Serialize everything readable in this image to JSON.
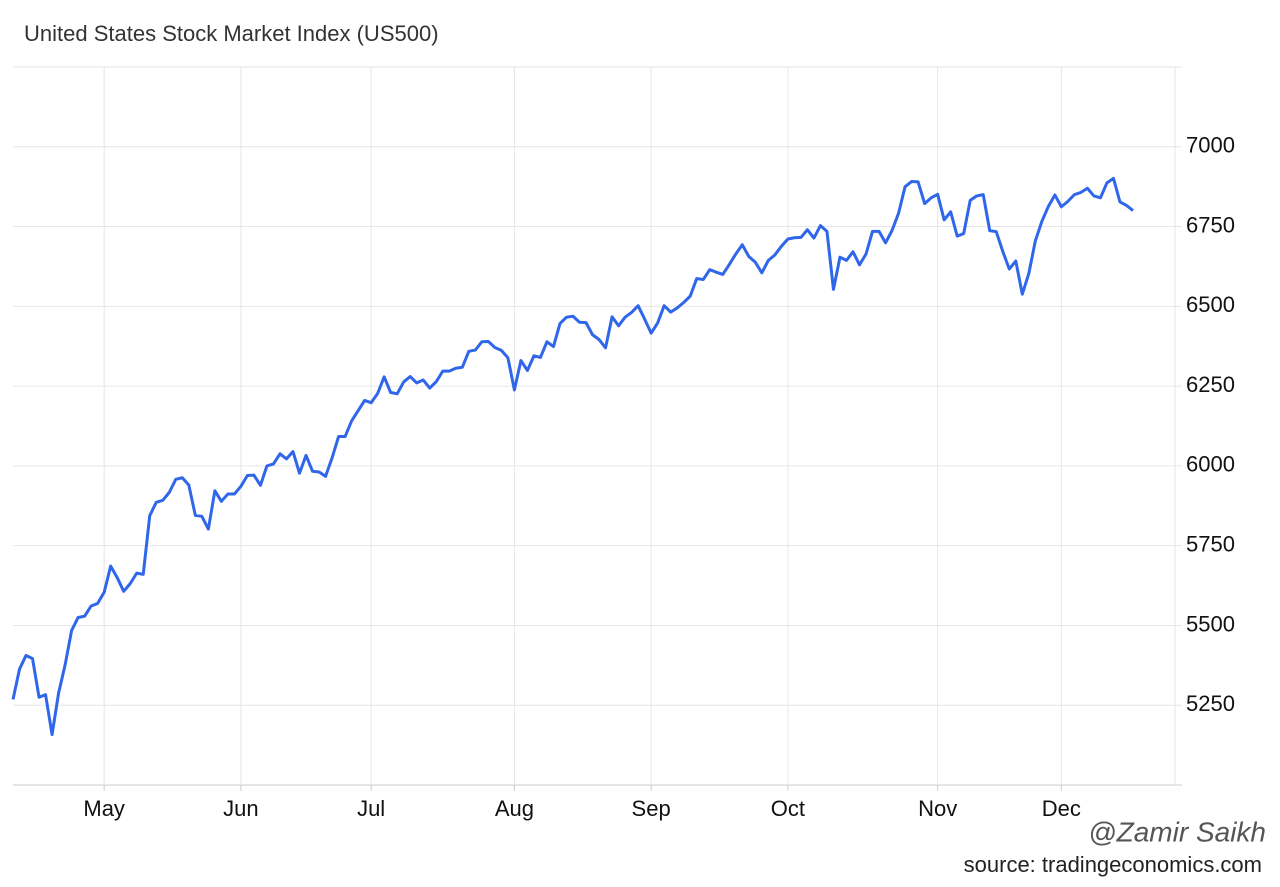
{
  "chart_data": {
    "type": "line",
    "title": "United States Stock Market Index (US500)",
    "watermark": "@Zamir Saikh",
    "source": "source: tradingeconomics.com",
    "color": "#2f66ea",
    "grid": true,
    "ylim": [
      5000,
      7250
    ],
    "yticks": [
      5250,
      5500,
      5750,
      6000,
      6250,
      6500,
      6750,
      7000
    ],
    "categories": [
      null,
      null,
      null,
      null,
      null,
      null,
      null,
      null,
      null,
      null,
      null,
      null,
      null,
      null,
      "May",
      null,
      null,
      null,
      null,
      null,
      null,
      null,
      null,
      null,
      null,
      null,
      null,
      null,
      null,
      null,
      null,
      null,
      null,
      null,
      null,
      "Jun",
      null,
      null,
      null,
      null,
      null,
      null,
      null,
      null,
      null,
      null,
      null,
      null,
      null,
      null,
      null,
      null,
      null,
      null,
      null,
      "Jul",
      null,
      null,
      null,
      null,
      null,
      null,
      null,
      null,
      null,
      null,
      null,
      null,
      null,
      null,
      null,
      null,
      null,
      null,
      null,
      null,
      null,
      "Aug",
      null,
      null,
      null,
      null,
      null,
      null,
      null,
      null,
      null,
      null,
      null,
      null,
      null,
      null,
      null,
      null,
      null,
      null,
      null,
      null,
      "Sep",
      null,
      null,
      null,
      null,
      null,
      null,
      null,
      null,
      null,
      null,
      null,
      null,
      null,
      null,
      null,
      null,
      null,
      null,
      null,
      null,
      "Oct",
      null,
      null,
      null,
      null,
      null,
      null,
      null,
      null,
      null,
      null,
      null,
      null,
      null,
      null,
      null,
      null,
      null,
      null,
      null,
      null,
      null,
      null,
      "Nov",
      null,
      null,
      null,
      null,
      null,
      null,
      null,
      null,
      null,
      null,
      null,
      null,
      null,
      null,
      null,
      null,
      null,
      null,
      "Dec",
      null,
      null,
      null,
      null,
      null,
      null,
      null,
      null,
      null,
      null,
      null
    ],
    "values": [
      5268,
      5363,
      5406,
      5396,
      5275,
      5283,
      5158,
      5288,
      5376,
      5484,
      5525,
      5529,
      5561,
      5569,
      5604,
      5686,
      5650,
      5607,
      5631,
      5664,
      5660,
      5844,
      5886,
      5892,
      5917,
      5958,
      5963,
      5940,
      5845,
      5842,
      5802,
      5922,
      5889,
      5912,
      5912,
      5936,
      5970,
      5971,
      5939,
      6000,
      6006,
      6038,
      6022,
      6045,
      5977,
      6033,
      5983,
      5981,
      5967,
      6025,
      6092,
      6092,
      6141,
      6173,
      6205,
      6198,
      6227,
      6279,
      6230,
      6226,
      6263,
      6280,
      6260,
      6269,
      6244,
      6264,
      6297,
      6297,
      6306,
      6309,
      6359,
      6363,
      6389,
      6390,
      6371,
      6362,
      6339,
      6238,
      6330,
      6299,
      6345,
      6340,
      6389,
      6374,
      6446,
      6466,
      6469,
      6450,
      6449,
      6411,
      6396,
      6370,
      6467,
      6439,
      6466,
      6481,
      6502,
      6460,
      6416,
      6448,
      6502,
      6482,
      6495,
      6512,
      6532,
      6587,
      6584,
      6615,
      6607,
      6600,
      6631,
      6664,
      6693,
      6656,
      6638,
      6605,
      6644,
      6661,
      6688,
      6711,
      6715,
      6716,
      6740,
      6714,
      6753,
      6735,
      6553,
      6654,
      6644,
      6671,
      6630,
      6664,
      6735,
      6735,
      6699,
      6738,
      6792,
      6875,
      6891,
      6890,
      6822,
      6840,
      6851,
      6771,
      6796,
      6720,
      6728,
      6832,
      6846,
      6850,
      6737,
      6734,
      6672,
      6617,
      6642,
      6538,
      6603,
      6705,
      6766,
      6813,
      6849,
      6812,
      6829,
      6850,
      6857,
      6870,
      6846,
      6840,
      6887,
      6901,
      6827,
      6816,
      6800
    ]
  }
}
